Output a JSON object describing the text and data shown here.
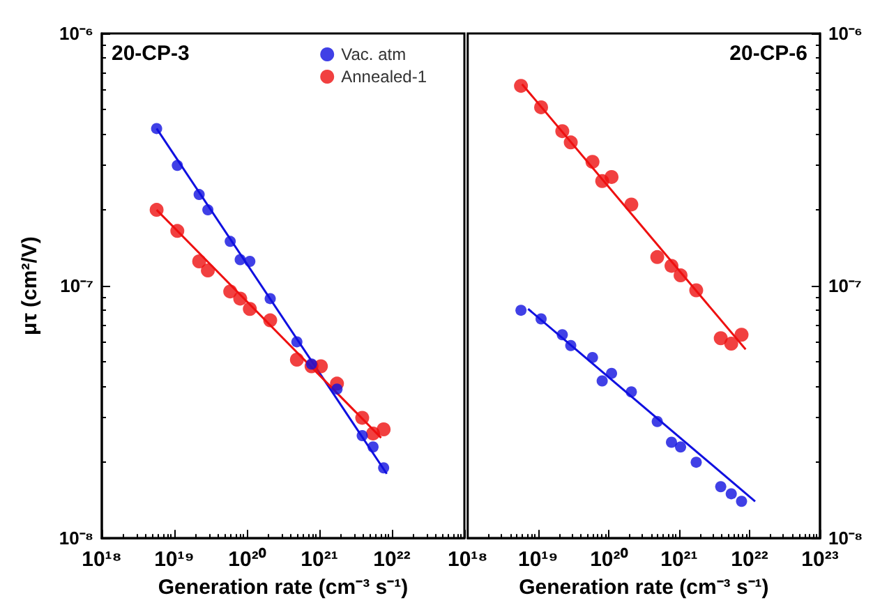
{
  "chart_data": [
    {
      "type": "scatter",
      "title": "20-CP-3",
      "xlabel": "Generation rate (cm⁻³ s⁻¹)",
      "ylabel": "μτ (cm²/V)",
      "log": "xy",
      "grid": false,
      "legend": "top right",
      "marker": "circle",
      "xlim": [
        1e+18,
        1e+23
      ],
      "xticks": [
        {
          "value": 1e+18,
          "label": "10¹⁸"
        },
        {
          "value": 1e+19,
          "label": "10¹⁹"
        },
        {
          "value": 1e+20,
          "label": "10²⁰"
        },
        {
          "value": 1e+21,
          "label": "10²¹"
        },
        {
          "value": 1e+22,
          "label": "10²²"
        },
        {
          "value": 1e+23,
          "label": null
        }
      ],
      "ylim": [
        1e-08,
        1e-06
      ],
      "yticks": [
        {
          "value": 1e-08,
          "label": "10⁻⁸"
        },
        {
          "value": 1e-07,
          "label": "10⁻⁷"
        },
        {
          "value": 1e-06,
          "label": "10⁻⁶"
        }
      ],
      "x": [
        5.7e+18,
        1.1e+19,
        2.2e+19,
        2.9e+19,
        5.9e+19,
        8.1e+19,
        1.1e+20,
        2.1e+20,
        4.9e+20,
        7.8e+20,
        1.05e+21,
        1.75e+21,
        3.9e+21,
        5.5e+21,
        7.7e+21
      ],
      "series": [
        {
          "name": "Vac. atm",
          "color": "#1010e0",
          "values": [
            4.2e-07,
            3e-07,
            2.3e-07,
            2e-07,
            1.5e-07,
            1.27e-07,
            1.25e-07,
            8.9e-08,
            6e-08,
            4.9e-08,
            null,
            3.9e-08,
            2.55e-08,
            2.3e-08,
            1.9e-08
          ]
        },
        {
          "name": "Annealed-1",
          "color": "#ee1010",
          "values": [
            2e-07,
            1.65e-07,
            1.25e-07,
            1.15e-07,
            9.5e-08,
            8.9e-08,
            8.1e-08,
            7.3e-08,
            5.1e-08,
            4.8e-08,
            4.8e-08,
            4.1e-08,
            3e-08,
            2.6e-08,
            2.7e-08
          ]
        },
        {
          "type": "line",
          "marker": "none",
          "color": "#1010e0",
          "x": [
            5.7e+18,
            8.5e+21
          ],
          "values": [
            4.2e-07,
            1.8e-08
          ]
        },
        {
          "type": "line",
          "marker": "none",
          "color": "#ee1010",
          "x": [
            5.7e+18,
            7.1e+21
          ],
          "values": [
            2e-07,
            2.5e-08
          ]
        }
      ]
    },
    {
      "type": "scatter",
      "title": "20-CP-6",
      "xlabel": "Generation rate (cm⁻³ s⁻¹)",
      "log": "xy",
      "grid": false,
      "marker": "circle",
      "xlim": [
        1e+18,
        1e+23
      ],
      "xticks": [
        {
          "value": 1e+18,
          "label": "10¹⁸"
        },
        {
          "value": 1e+19,
          "label": "10¹⁹"
        },
        {
          "value": 1e+20,
          "label": "10²⁰"
        },
        {
          "value": 1e+21,
          "label": "10²¹"
        },
        {
          "value": 1e+22,
          "label": "10²²"
        },
        {
          "value": 1e+23,
          "label": "10²³"
        }
      ],
      "ylim": [
        1e-08,
        1e-06
      ],
      "yticks": [
        {
          "value": 1e-08,
          "label": "10⁻⁸"
        },
        {
          "value": 1e-07,
          "label": "10⁻⁷"
        },
        {
          "value": 1e-06,
          "label": "10⁻⁶"
        }
      ],
      "x": [
        5.7e+18,
        1.1e+19,
        2.2e+19,
        2.9e+19,
        5.9e+19,
        8.1e+19,
        1.1e+20,
        2.1e+20,
        4.9e+20,
        7.8e+20,
        1.05e+21,
        1.75e+21,
        3.9e+21,
        5.5e+21,
        7.7e+21
      ],
      "series": [
        {
          "color": "#1010e0",
          "values": [
            8e-08,
            7.4e-08,
            6.4e-08,
            5.8e-08,
            5.2e-08,
            4.2e-08,
            4.5e-08,
            3.8e-08,
            2.9e-08,
            2.4e-08,
            2.3e-08,
            2e-08,
            1.6e-08,
            1.5e-08,
            1.4e-08
          ]
        },
        {
          "color": "#ee1010",
          "values": [
            6.2e-07,
            5.1e-07,
            4.1e-07,
            3.7e-07,
            3.1e-07,
            2.6e-07,
            2.7e-07,
            2.1e-07,
            1.3e-07,
            1.2e-07,
            1.1e-07,
            9.6e-08,
            6.2e-08,
            5.9e-08,
            6.4e-08
          ]
        },
        {
          "type": "line",
          "marker": "none",
          "color": "#1010e0",
          "x": [
            7.2e+18,
            1.2e+22
          ],
          "values": [
            8.1e-08,
            1.4e-08
          ]
        },
        {
          "type": "line",
          "marker": "none",
          "color": "#ee1010",
          "x": [
            5.9e+18,
            8.8e+21
          ],
          "values": [
            6.3e-07,
            5.6e-08
          ]
        }
      ]
    }
  ]
}
